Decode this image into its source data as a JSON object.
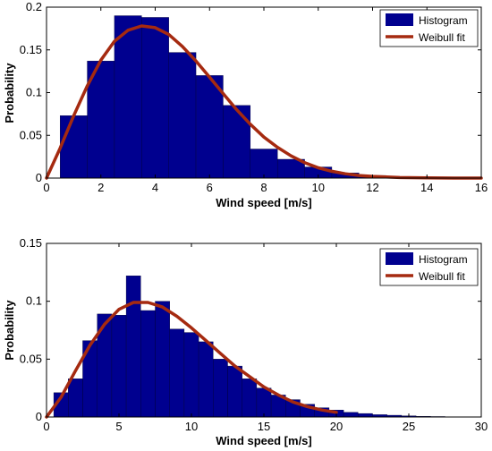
{
  "chart_data": [
    {
      "type": "bar",
      "xlabel": "Wind speed [m/s]",
      "ylabel": "Probability",
      "xlim": [
        0,
        16
      ],
      "ylim": [
        0,
        0.2
      ],
      "xticks": [
        0,
        2,
        4,
        6,
        8,
        10,
        12,
        14,
        16
      ],
      "yticks": [
        0,
        0.05,
        0.1,
        0.15,
        0.2
      ],
      "ytick_labels": [
        "0",
        "0.05",
        "0.1",
        "0.15",
        "0.2"
      ],
      "grid": false,
      "legend_placement": "top-right",
      "legend": [
        "Histogram",
        "Weibull fit"
      ],
      "histogram": {
        "name": "Histogram",
        "bin_width": 1,
        "bin_starts": [
          0.5,
          1.5,
          2.5,
          3.5,
          4.5,
          5.5,
          6.5,
          7.5,
          8.5,
          9.5,
          10.5,
          11.5,
          12.5,
          13.5,
          14.5
        ],
        "values": [
          0.073,
          0.137,
          0.19,
          0.188,
          0.147,
          0.12,
          0.085,
          0.034,
          0.022,
          0.013,
          0.006,
          0.003,
          0.001,
          0.0005,
          0.0002
        ]
      },
      "fit": {
        "name": "Weibull fit",
        "x": [
          0,
          0.5,
          1,
          1.5,
          2,
          2.5,
          3,
          3.5,
          4,
          4.5,
          5,
          5.5,
          6,
          6.5,
          7,
          7.5,
          8,
          8.5,
          9,
          9.5,
          10,
          10.5,
          11,
          11.5,
          12,
          13,
          14,
          15,
          16
        ],
        "y": [
          0,
          0.035,
          0.073,
          0.108,
          0.138,
          0.16,
          0.173,
          0.178,
          0.176,
          0.168,
          0.154,
          0.137,
          0.118,
          0.099,
          0.08,
          0.063,
          0.048,
          0.036,
          0.026,
          0.018,
          0.012,
          0.008,
          0.005,
          0.003,
          0.002,
          0.0006,
          0.0002,
          0,
          0
        ]
      },
      "colors": {
        "histogram": "#00008f",
        "fit": "#a52a10"
      }
    },
    {
      "type": "bar",
      "xlabel": "Wind speed [m/s]",
      "ylabel": "Probability",
      "xlim": [
        0,
        30
      ],
      "ylim": [
        0,
        0.15
      ],
      "xticks": [
        0,
        5,
        10,
        15,
        20,
        25,
        30
      ],
      "yticks": [
        0,
        0.05,
        0.1,
        0.15
      ],
      "ytick_labels": [
        "0",
        "0.05",
        "0.1",
        "0.15"
      ],
      "grid": false,
      "legend_placement": "top-right",
      "legend": [
        "Histogram",
        "Weibull fit"
      ],
      "histogram": {
        "name": "Histogram",
        "bin_width": 1,
        "bin_starts": [
          0.5,
          1.5,
          2.5,
          3.5,
          4.5,
          5.5,
          6.5,
          7.5,
          8.5,
          9.5,
          10.5,
          11.5,
          12.5,
          13.5,
          14.5,
          15.5,
          16.5,
          17.5,
          18.5,
          19.5,
          20.5,
          21.5,
          22.5,
          23.5,
          24.5,
          25.5,
          26.5,
          27.5,
          28.5
        ],
        "values": [
          0.021,
          0.033,
          0.066,
          0.089,
          0.088,
          0.122,
          0.092,
          0.1,
          0.076,
          0.073,
          0.065,
          0.05,
          0.044,
          0.033,
          0.025,
          0.019,
          0.015,
          0.011,
          0.008,
          0.006,
          0.004,
          0.003,
          0.002,
          0.0015,
          0.001,
          0.0006,
          0.0004,
          0.0002,
          0.0001
        ]
      },
      "fit": {
        "name": "Weibull fit",
        "x": [
          0,
          1,
          2,
          3,
          4,
          5,
          6,
          7,
          8,
          9,
          10,
          11,
          12,
          13,
          14,
          15,
          16,
          17,
          18,
          19,
          20
        ],
        "y": [
          0,
          0.017,
          0.04,
          0.062,
          0.08,
          0.093,
          0.099,
          0.099,
          0.095,
          0.087,
          0.077,
          0.066,
          0.055,
          0.044,
          0.035,
          0.026,
          0.019,
          0.013,
          0.009,
          0.006,
          0.004
        ]
      },
      "colors": {
        "histogram": "#00008f",
        "fit": "#a52a10"
      }
    }
  ]
}
